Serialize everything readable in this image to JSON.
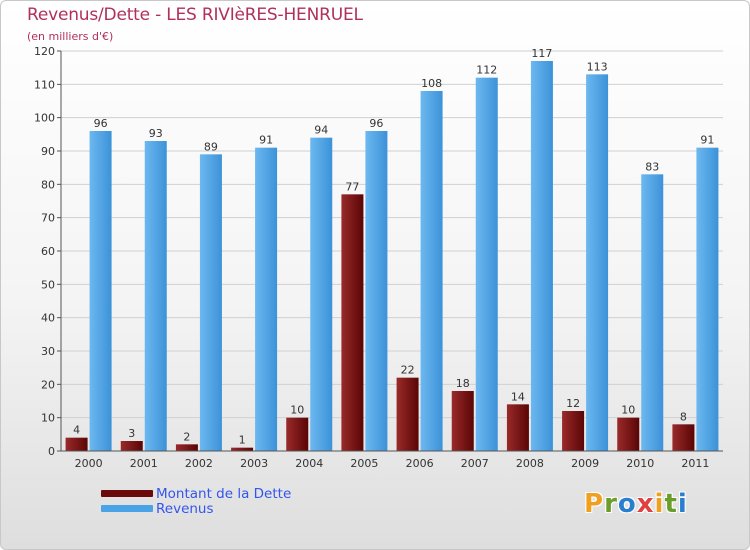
{
  "title": "Revenus/Dette - LES RIVIèRES-HENRUEL",
  "subtitle": "(en milliers d'€)",
  "legend": {
    "items": [
      {
        "label": "Montant de la Dette",
        "color": "#6b0a0a"
      },
      {
        "label": "Revenus",
        "color": "#4aa3e6"
      }
    ]
  },
  "logo": {
    "letters": [
      "P",
      "r",
      "o",
      "x",
      "i",
      "t",
      "i"
    ],
    "colors": [
      "#f0a020",
      "#6a9e2a",
      "#2a7ed0",
      "#e04040",
      "#f0a020",
      "#6a9e2a",
      "#2a7ed0"
    ]
  },
  "chart_data": {
    "type": "bar",
    "categories": [
      "2000",
      "2001",
      "2002",
      "2003",
      "2004",
      "2005",
      "2006",
      "2007",
      "2008",
      "2009",
      "2010",
      "2011"
    ],
    "series": [
      {
        "name": "Montant de la Dette",
        "color": "#6b0a0a",
        "values": [
          4,
          3,
          2,
          1,
          10,
          77,
          22,
          18,
          14,
          12,
          10,
          8
        ]
      },
      {
        "name": "Revenus",
        "color": "#4aa3e6",
        "values": [
          96,
          93,
          89,
          91,
          94,
          96,
          108,
          112,
          117,
          113,
          83,
          91
        ]
      }
    ],
    "ylim": [
      0,
      120
    ],
    "yticks": [
      0,
      10,
      20,
      30,
      40,
      50,
      60,
      70,
      80,
      90,
      100,
      110,
      120
    ],
    "grid": true,
    "legend_position": "bottom-left"
  }
}
